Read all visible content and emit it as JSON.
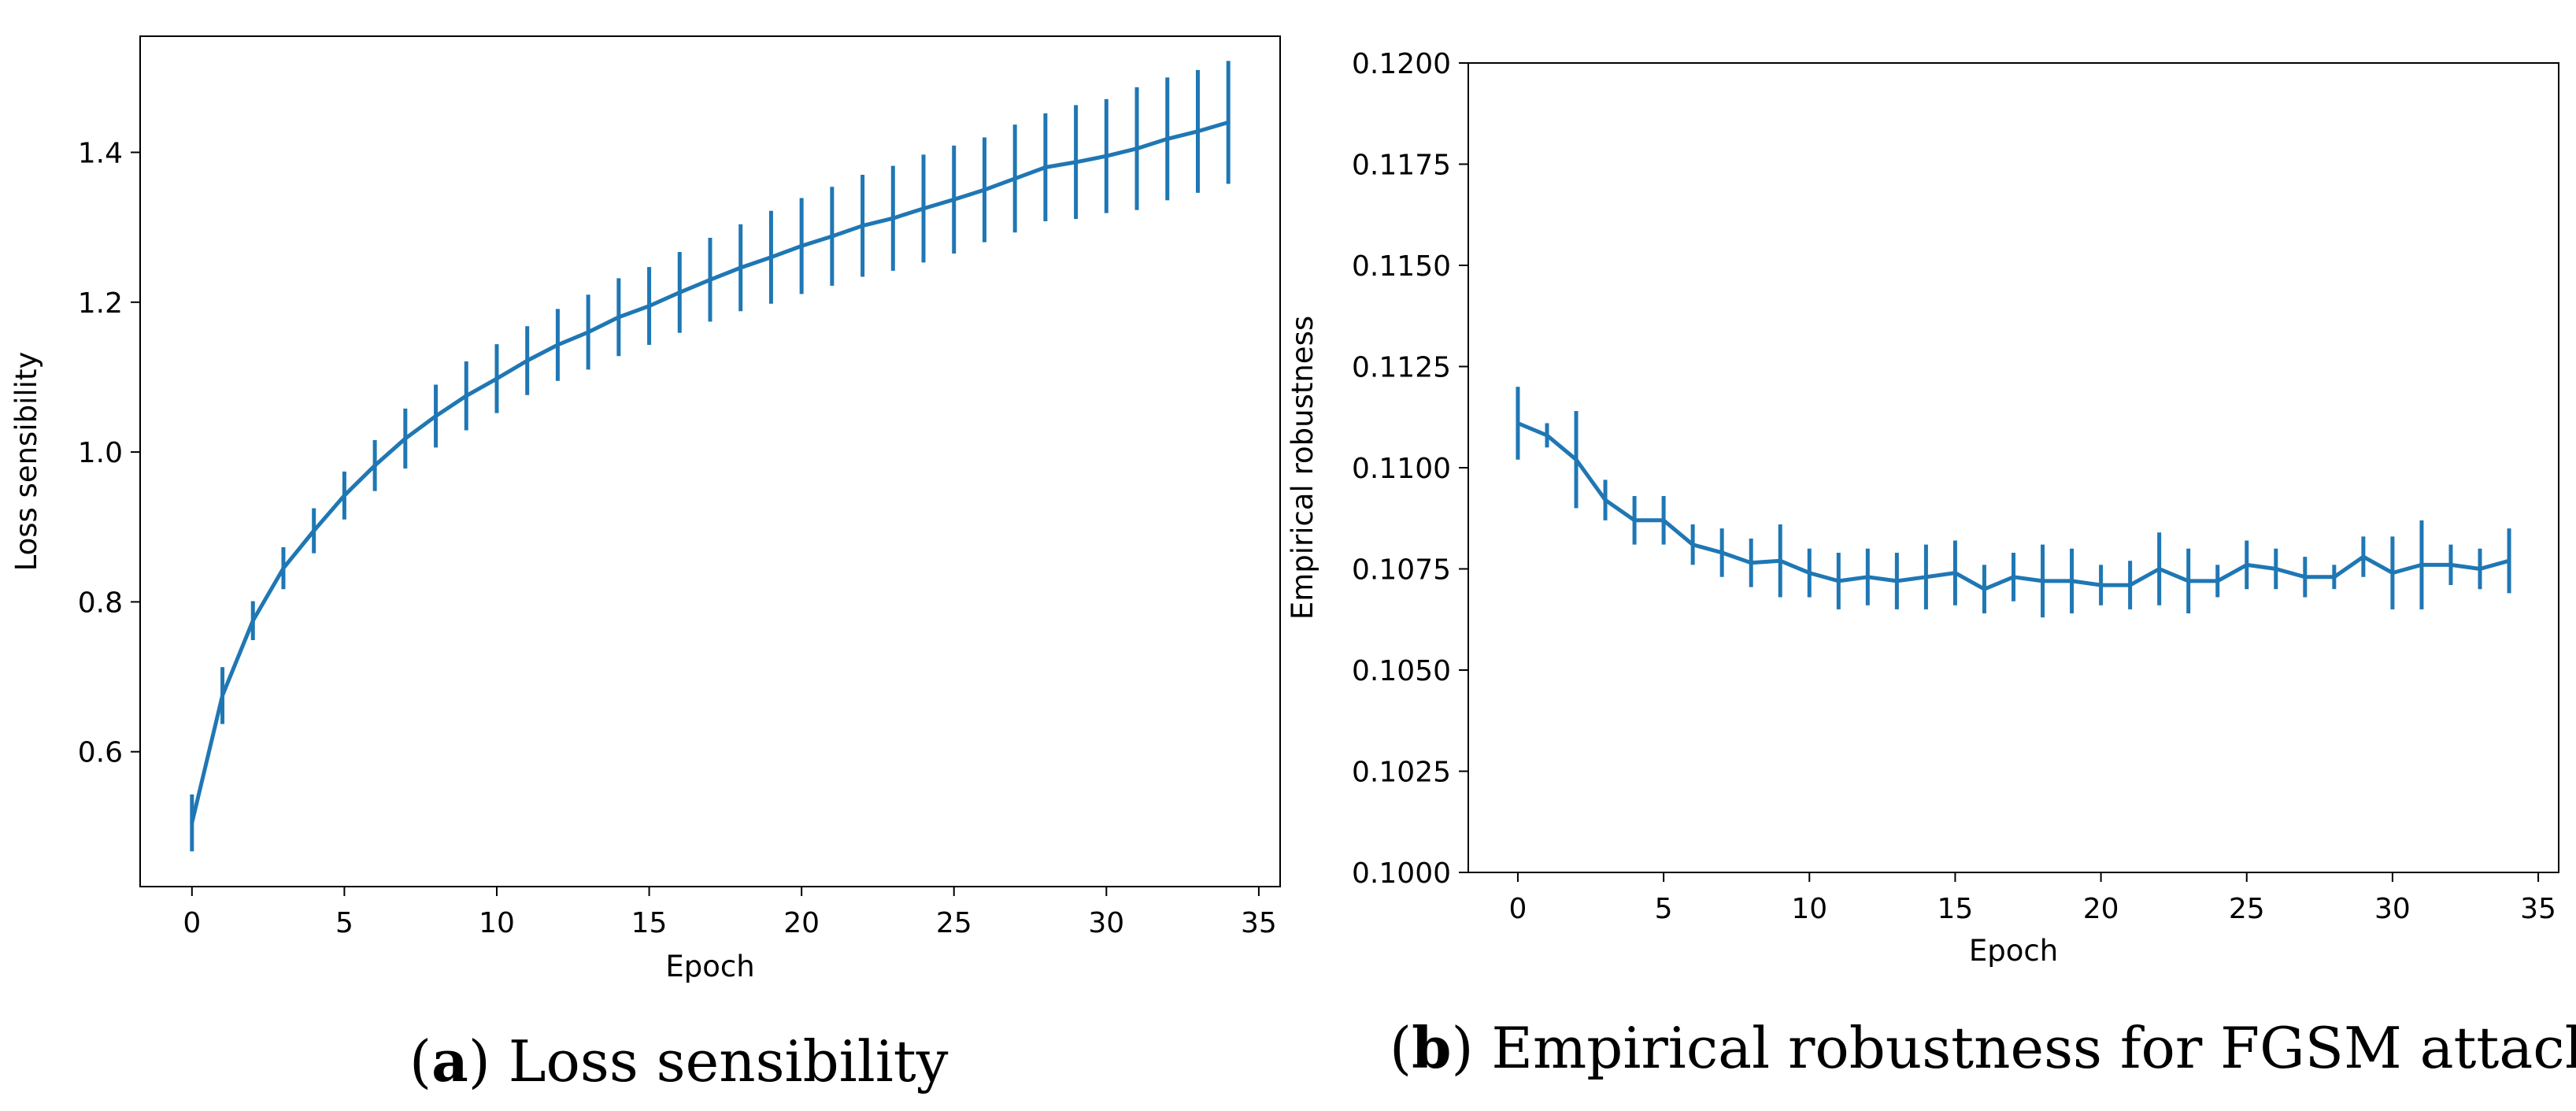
{
  "chart_data": [
    {
      "type": "line",
      "subtitle_label": "a",
      "caption": "Loss sensibility",
      "xlabel": "Epoch",
      "ylabel": "Loss sensibility",
      "xlim": [
        -1.7,
        35.7
      ],
      "ylim": [
        0.42,
        1.555
      ],
      "xticks": [
        0,
        5,
        10,
        15,
        20,
        25,
        30,
        35
      ],
      "yticks": [
        0.6,
        0.8,
        1.0,
        1.2,
        1.4
      ],
      "ytick_labels": [
        "0.6",
        "0.8",
        "1.0",
        "1.2",
        "1.4"
      ],
      "color": "#1f77b4",
      "grid": false,
      "series": [
        {
          "name": "Loss sensibility",
          "x": [
            0,
            1,
            2,
            3,
            4,
            5,
            6,
            7,
            8,
            9,
            10,
            11,
            12,
            13,
            14,
            15,
            16,
            17,
            18,
            19,
            20,
            21,
            22,
            23,
            24,
            25,
            26,
            27,
            28,
            29,
            30,
            31,
            32,
            33,
            34
          ],
          "y": [
            0.505,
            0.675,
            0.775,
            0.845,
            0.895,
            0.942,
            0.982,
            1.018,
            1.048,
            1.075,
            1.098,
            1.122,
            1.143,
            1.16,
            1.18,
            1.195,
            1.213,
            1.23,
            1.246,
            1.26,
            1.275,
            1.288,
            1.302,
            1.312,
            1.325,
            1.337,
            1.35,
            1.365,
            1.38,
            1.387,
            1.395,
            1.405,
            1.418,
            1.428,
            1.44
          ],
          "yerr": [
            0.038,
            0.038,
            0.026,
            0.028,
            0.03,
            0.032,
            0.034,
            0.04,
            0.042,
            0.046,
            0.046,
            0.046,
            0.048,
            0.05,
            0.052,
            0.052,
            0.054,
            0.056,
            0.058,
            0.062,
            0.064,
            0.066,
            0.068,
            0.07,
            0.072,
            0.072,
            0.07,
            0.072,
            0.072,
            0.076,
            0.076,
            0.082,
            0.082,
            0.082,
            0.082
          ]
        }
      ]
    },
    {
      "type": "line",
      "subtitle_label": "b",
      "caption": "Empirical robustness for FGSM attack",
      "xlabel": "Epoch",
      "ylabel": "Empirical robustness",
      "xlim": [
        -1.7,
        35.7
      ],
      "ylim": [
        0.1,
        0.12
      ],
      "xticks": [
        0,
        5,
        10,
        15,
        20,
        25,
        30,
        35
      ],
      "yticks": [
        0.1,
        0.1025,
        0.105,
        0.1075,
        0.11,
        0.1125,
        0.115,
        0.1175,
        0.12
      ],
      "ytick_labels": [
        "0.1000",
        "0.1025",
        "0.1050",
        "0.1075",
        "0.1100",
        "0.1125",
        "0.1150",
        "0.1175",
        "0.1200"
      ],
      "color": "#1f77b4",
      "grid": false,
      "series": [
        {
          "name": "Empirical robustness",
          "x": [
            0,
            1,
            2,
            3,
            4,
            5,
            6,
            7,
            8,
            9,
            10,
            11,
            12,
            13,
            14,
            15,
            16,
            17,
            18,
            19,
            20,
            21,
            22,
            23,
            24,
            25,
            26,
            27,
            28,
            29,
            30,
            31,
            32,
            33,
            34
          ],
          "y": [
            0.1111,
            0.1108,
            0.1102,
            0.1092,
            0.1087,
            0.1087,
            0.1081,
            0.1079,
            0.10765,
            0.1077,
            0.1074,
            0.1072,
            0.1073,
            0.1072,
            0.1073,
            0.1074,
            0.107,
            0.1073,
            0.1072,
            0.1072,
            0.1071,
            0.1071,
            0.1075,
            0.1072,
            0.1072,
            0.1076,
            0.1075,
            0.1073,
            0.1073,
            0.1078,
            0.1074,
            0.1076,
            0.1076,
            0.1075,
            0.1077
          ],
          "yerr": [
            0.0009,
            0.0003,
            0.0012,
            0.0005,
            0.0006,
            0.0006,
            0.0005,
            0.0006,
            0.0006,
            0.0009,
            0.0006,
            0.0007,
            0.0007,
            0.0007,
            0.0008,
            0.0008,
            0.0006,
            0.0006,
            0.0009,
            0.0008,
            0.0005,
            0.0006,
            0.0009,
            0.0008,
            0.0004,
            0.0006,
            0.0005,
            0.0005,
            0.0003,
            0.0005,
            0.0009,
            0.0011,
            0.0005,
            0.0005,
            0.0008
          ]
        }
      ]
    }
  ]
}
